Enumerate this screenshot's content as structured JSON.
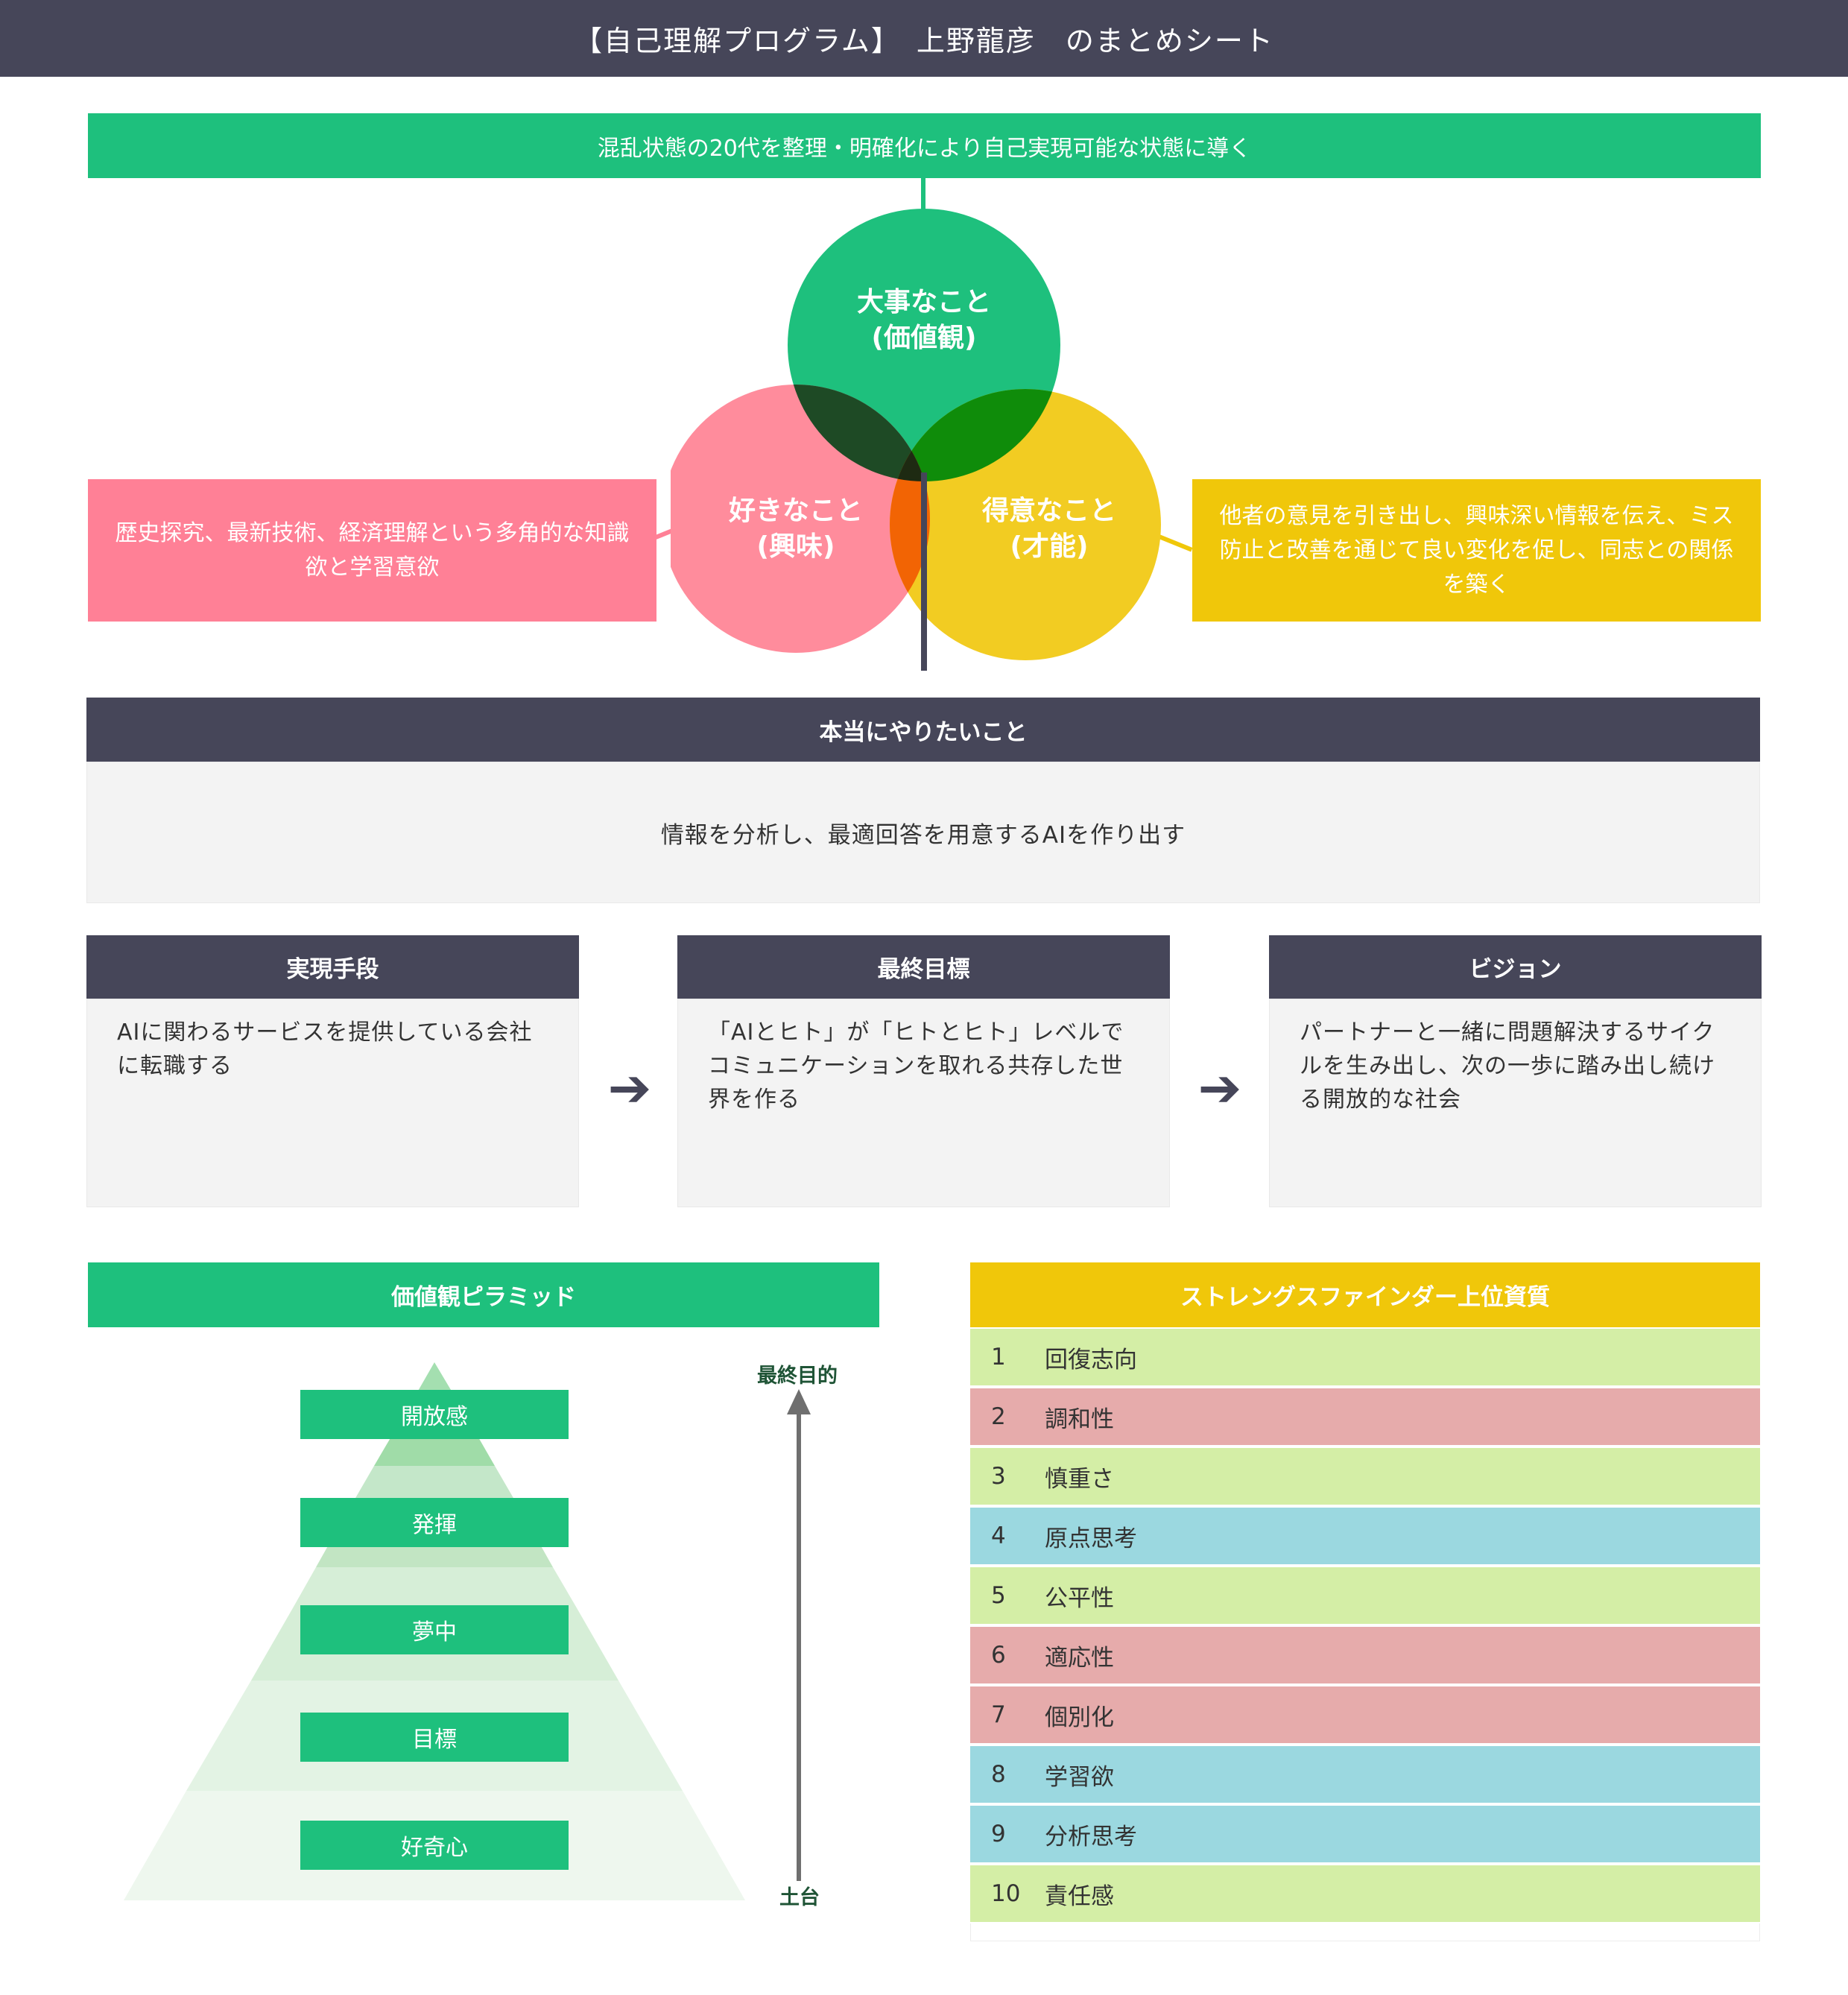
{
  "header": {
    "title": "【自己理解プログラム】　上野龍彦　のまとめシート"
  },
  "mission": "混乱状態の20代を整理・明確化により自己実現可能な状態に導く",
  "venn": {
    "values": {
      "title": "大事なこと",
      "sub": "(価値観)",
      "color": "#1ec07d"
    },
    "interest": {
      "title": "好きなこと",
      "sub": "(興味)",
      "color": "#ff8c9c"
    },
    "talent": {
      "title": "得意なこと",
      "sub": "(才能)",
      "color": "#f2cc22"
    },
    "interest_desc": "歴史探究、最新技術、経済理解という多角的な知識欲と学習意欲",
    "talent_desc": "他者の意見を引き出し、興味深い情報を伝え、ミス防止と改善を通じて良い変化を促し、同志との関係を築く"
  },
  "true_goal": {
    "label": "本当にやりたいこと",
    "text": "情報を分析し、最適回答を用意するAIを作り出す"
  },
  "flow": [
    {
      "label": "実現手段",
      "text": "AIに関わるサービスを提供している会社に転職する"
    },
    {
      "label": "最終目標",
      "text": "「AIとヒト」が「ヒトとヒト」レベルでコミュニケーションを取れる共存した世界を作る"
    },
    {
      "label": "ビジョン",
      "text": "パートナーと一緒に問題解決するサイクルを生み出し、次の一歩に踏み出し続ける開放的な社会"
    }
  ],
  "arrow_glyph": "➔",
  "pyramid": {
    "title": "価値観ピラミッド",
    "levels": [
      "開放感",
      "発揮",
      "夢中",
      "目標",
      "好奇心"
    ],
    "axis_top": "最終目的",
    "axis_bottom": "土台"
  },
  "strengths": {
    "title": "ストレングスファインダー上位資質",
    "items": [
      {
        "rank": "1",
        "name": "回復志向",
        "color": "#d4eea6"
      },
      {
        "rank": "2",
        "name": "調和性",
        "color": "#e6abab"
      },
      {
        "rank": "3",
        "name": "慎重さ",
        "color": "#d4eea6"
      },
      {
        "rank": "4",
        "name": "原点思考",
        "color": "#9bd8e0"
      },
      {
        "rank": "5",
        "name": "公平性",
        "color": "#d4eea6"
      },
      {
        "rank": "6",
        "name": "適応性",
        "color": "#e6abab"
      },
      {
        "rank": "7",
        "name": "個別化",
        "color": "#e6abab"
      },
      {
        "rank": "8",
        "name": "学習欲",
        "color": "#9bd8e0"
      },
      {
        "rank": "9",
        "name": "分析思考",
        "color": "#9bd8e0"
      },
      {
        "rank": "10",
        "name": "責任感",
        "color": "#d4eea6"
      }
    ]
  },
  "colors": {
    "dark": "#464659",
    "green": "#1ec07d",
    "pink": "#ff8096",
    "yellow": "#f0c70a"
  }
}
